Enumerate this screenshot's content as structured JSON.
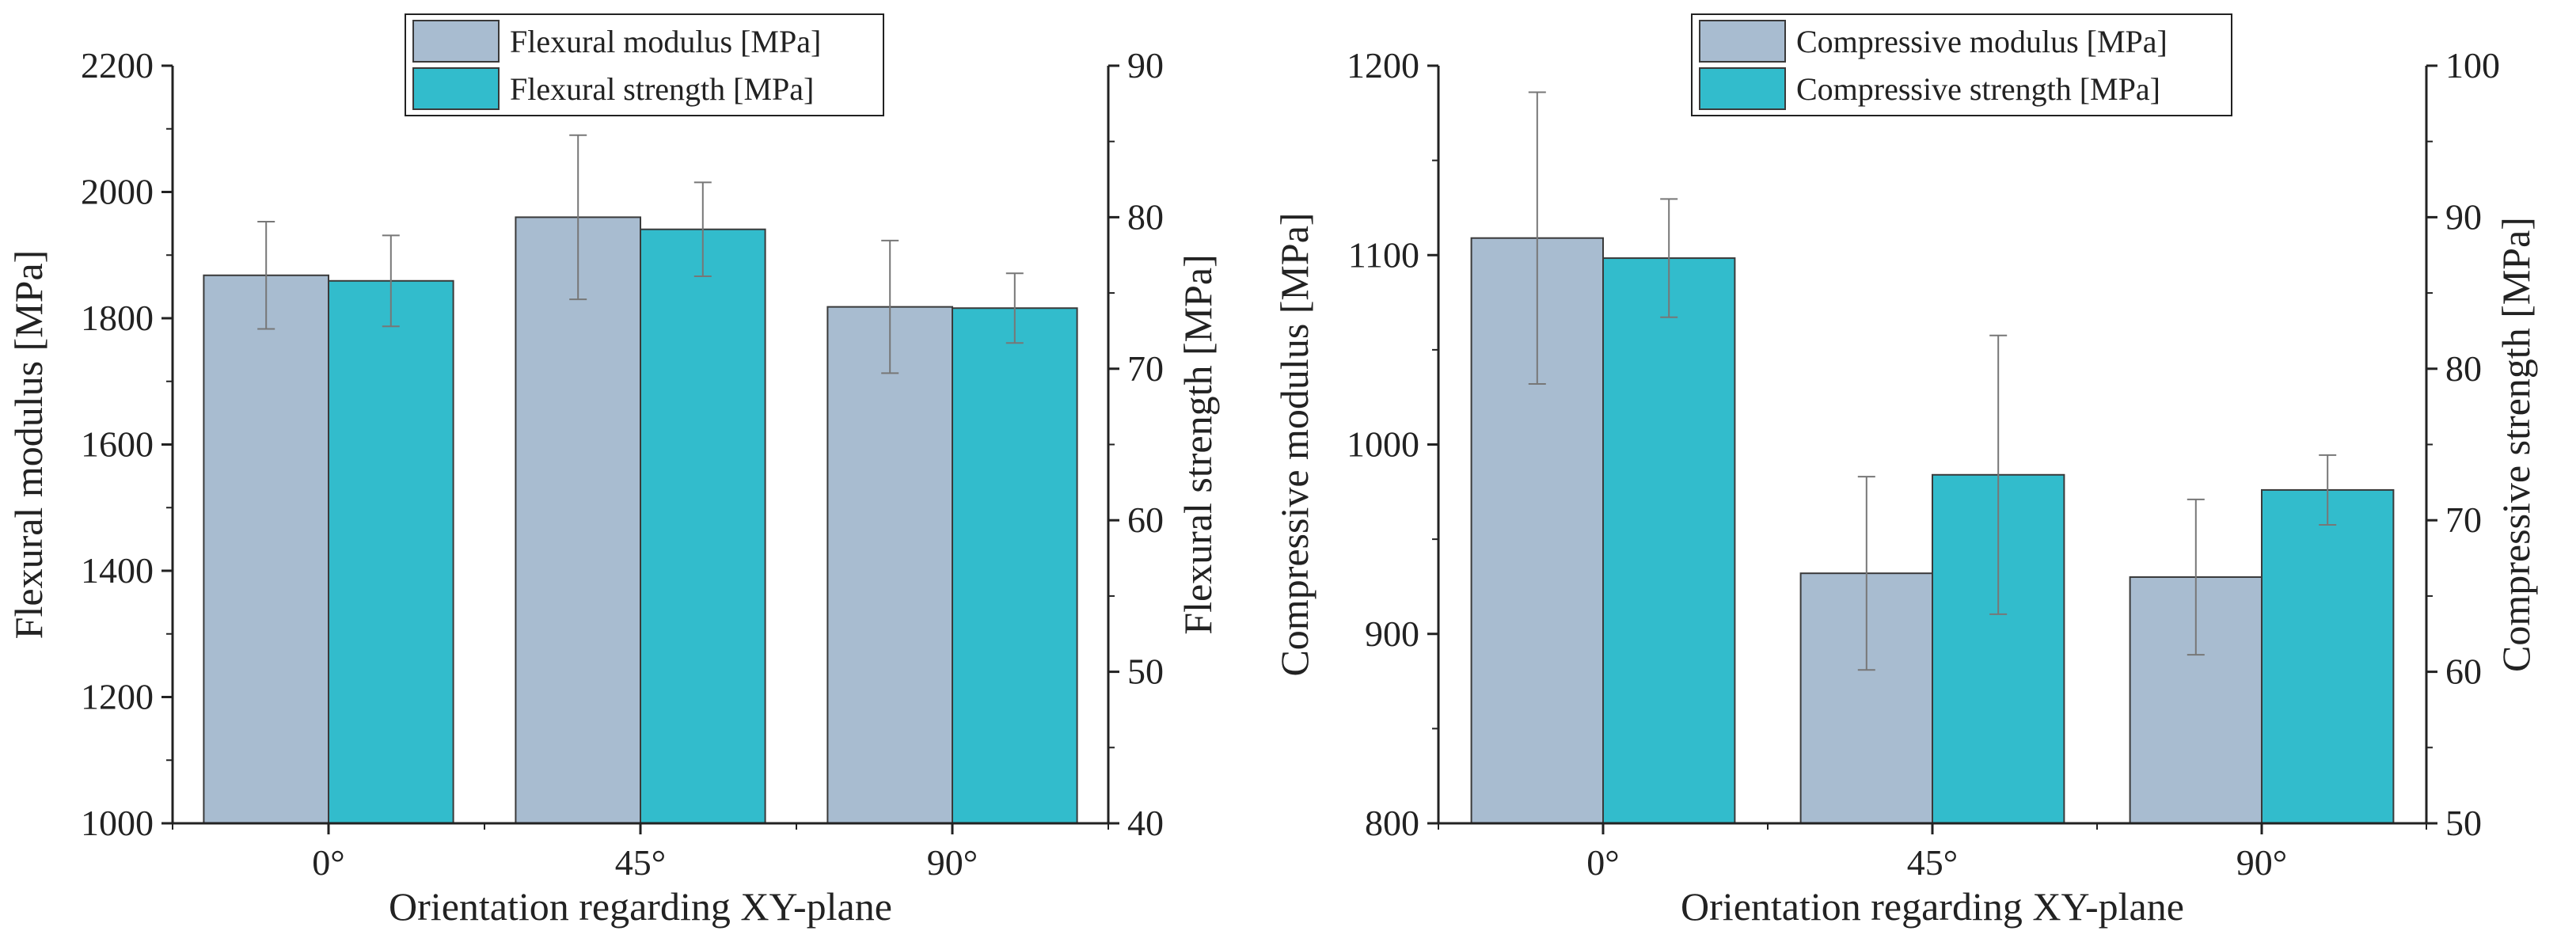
{
  "colors": {
    "modulus": "#a8bcd0",
    "strength": "#32bccc",
    "bar_stroke": "#3a3a3a",
    "error": "#777777",
    "axis": "#222222"
  },
  "chart_data": [
    {
      "type": "bar",
      "categories": [
        "0°",
        "45°",
        "90°"
      ],
      "xlabel": "Orientation regarding XY-plane",
      "ylabel": "Flexural modulus [MPa]",
      "y2label": "Flexural strength [MPa]",
      "ylim": [
        1000,
        2200
      ],
      "y2lim": [
        40,
        90
      ],
      "yticks": [
        1000,
        1200,
        1400,
        1600,
        1800,
        2000,
        2200
      ],
      "y2ticks": [
        40,
        50,
        60,
        70,
        80,
        90
      ],
      "legend_position": "top-center",
      "series": [
        {
          "name": "Flexural modulus [MPa]",
          "axis": "left",
          "values": [
            1868,
            1960,
            1818
          ],
          "errors": [
            85,
            130,
            105
          ]
        },
        {
          "name": "Flexural strength [MPa]",
          "axis": "right",
          "values": [
            75.8,
            79.2,
            74.0
          ],
          "errors": [
            3.0,
            3.1,
            2.3
          ]
        }
      ]
    },
    {
      "type": "bar",
      "categories": [
        "0°",
        "45°",
        "90°"
      ],
      "xlabel": "Orientation regarding XY-plane",
      "ylabel": "Compressive modulus [MPa]",
      "y2label": "Compressive strength [MPa]",
      "ylim": [
        800,
        1200
      ],
      "y2lim": [
        50,
        100
      ],
      "yticks": [
        800,
        900,
        1000,
        1100,
        1200
      ],
      "y2ticks": [
        50,
        60,
        70,
        80,
        90,
        100
      ],
      "legend_position": "top-center",
      "series": [
        {
          "name": "Compressive modulus [MPa]",
          "axis": "left",
          "values": [
            1109,
            932,
            930
          ],
          "errors": [
            77,
            51,
            41
          ]
        },
        {
          "name": "Compressive strength [MPa]",
          "axis": "right",
          "values": [
            87.3,
            73.0,
            72.0
          ],
          "errors": [
            3.9,
            9.2,
            2.3
          ]
        }
      ]
    }
  ]
}
